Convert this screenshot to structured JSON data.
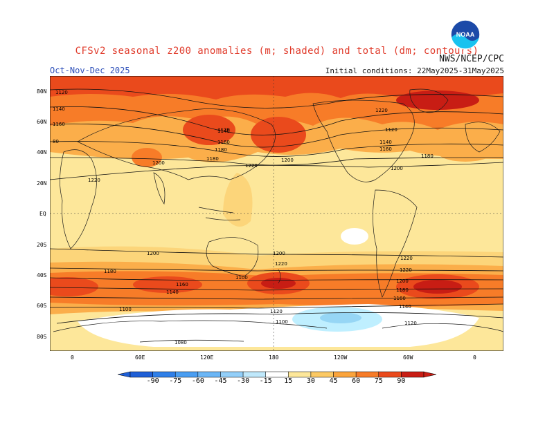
{
  "header": {
    "title": "CFSv2 seasonal z200 anomalies (m; shaded) and total (dm; contours)",
    "agency": "NWS/NCEP/CPC",
    "season": "Oct-Nov-Dec 2025",
    "initial_conditions": "Initial conditions: 22May2025-31May2025",
    "logo_text": "NOAA"
  },
  "map": {
    "lat_labels": [
      "80N",
      "60N",
      "40N",
      "20N",
      "EQ",
      "20S",
      "40S",
      "60S",
      "80S"
    ],
    "lon_labels": [
      "0",
      "60E",
      "120E",
      "180",
      "120W",
      "60W",
      "0"
    ],
    "contour_labels": [
      "1120",
      "1140",
      "1160",
      "80",
      "1180",
      "1200",
      "1220",
      "1200",
      "1220",
      "1180",
      "1160",
      "1140",
      "1120",
      "1100",
      "1080",
      "1120",
      "1140",
      "1160",
      "1180",
      "1200",
      "1220",
      "1200",
      "1220",
      "1120",
      "1140",
      "1160",
      "1180",
      "1200",
      "1220",
      "1220",
      "1200",
      "1180",
      "1160",
      "1140",
      "1120",
      "1100",
      "1100"
    ],
    "colors": {
      "ocean_neutral": "#ffffff",
      "15": "#fde79a",
      "30": "#fcd57a",
      "45": "#fbae4a",
      "60": "#f77c28",
      "75": "#ea4a1c",
      "90": "#c81d14",
      "neg15": "#bfefff",
      "neg30": "#96d6f5"
    }
  },
  "colorbar": {
    "labels": [
      "-90",
      "-75",
      "-60",
      "-45",
      "-30",
      "-15",
      "15",
      "30",
      "45",
      "60",
      "75",
      "90"
    ],
    "colors": [
      "#1f5fd6",
      "#2f7fe8",
      "#4a9ef2",
      "#6bb6f6",
      "#93cff9",
      "#bfe8fb",
      "#ffffff",
      "#fde79a",
      "#fcc964",
      "#fba43c",
      "#f77c28",
      "#ea4a1c",
      "#c81d14"
    ]
  }
}
